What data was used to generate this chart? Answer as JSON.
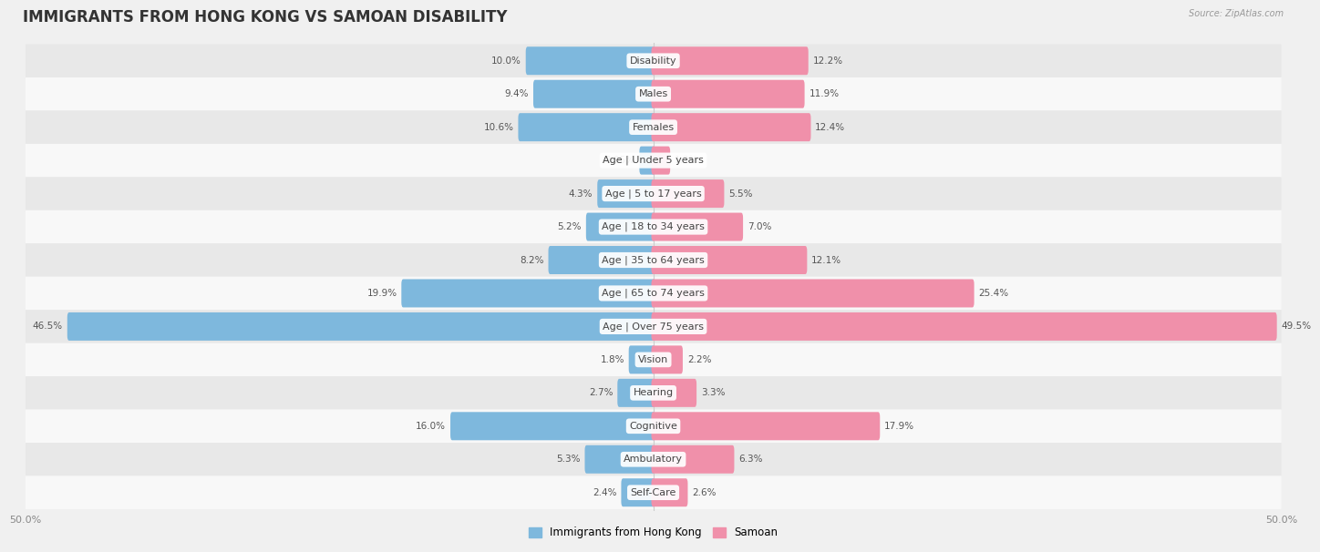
{
  "title": "IMMIGRANTS FROM HONG KONG VS SAMOAN DISABILITY",
  "source": "Source: ZipAtlas.com",
  "categories": [
    "Disability",
    "Males",
    "Females",
    "Age | Under 5 years",
    "Age | 5 to 17 years",
    "Age | 18 to 34 years",
    "Age | 35 to 64 years",
    "Age | 65 to 74 years",
    "Age | Over 75 years",
    "Vision",
    "Hearing",
    "Cognitive",
    "Ambulatory",
    "Self-Care"
  ],
  "hk_values": [
    10.0,
    9.4,
    10.6,
    0.95,
    4.3,
    5.2,
    8.2,
    19.9,
    46.5,
    1.8,
    2.7,
    16.0,
    5.3,
    2.4
  ],
  "samoan_values": [
    12.2,
    11.9,
    12.4,
    1.2,
    5.5,
    7.0,
    12.1,
    25.4,
    49.5,
    2.2,
    3.3,
    17.9,
    6.3,
    2.6
  ],
  "hk_color": "#7eb8dd",
  "samoan_color": "#f090aa",
  "hk_label": "Immigrants from Hong Kong",
  "samoan_label": "Samoan",
  "axis_limit": 50.0,
  "bg_color": "#f0f0f0",
  "row_bg_even": "#e8e8e8",
  "row_bg_odd": "#f8f8f8",
  "title_fontsize": 12,
  "label_fontsize": 8,
  "value_fontsize": 7.5,
  "axis_label_fontsize": 8
}
